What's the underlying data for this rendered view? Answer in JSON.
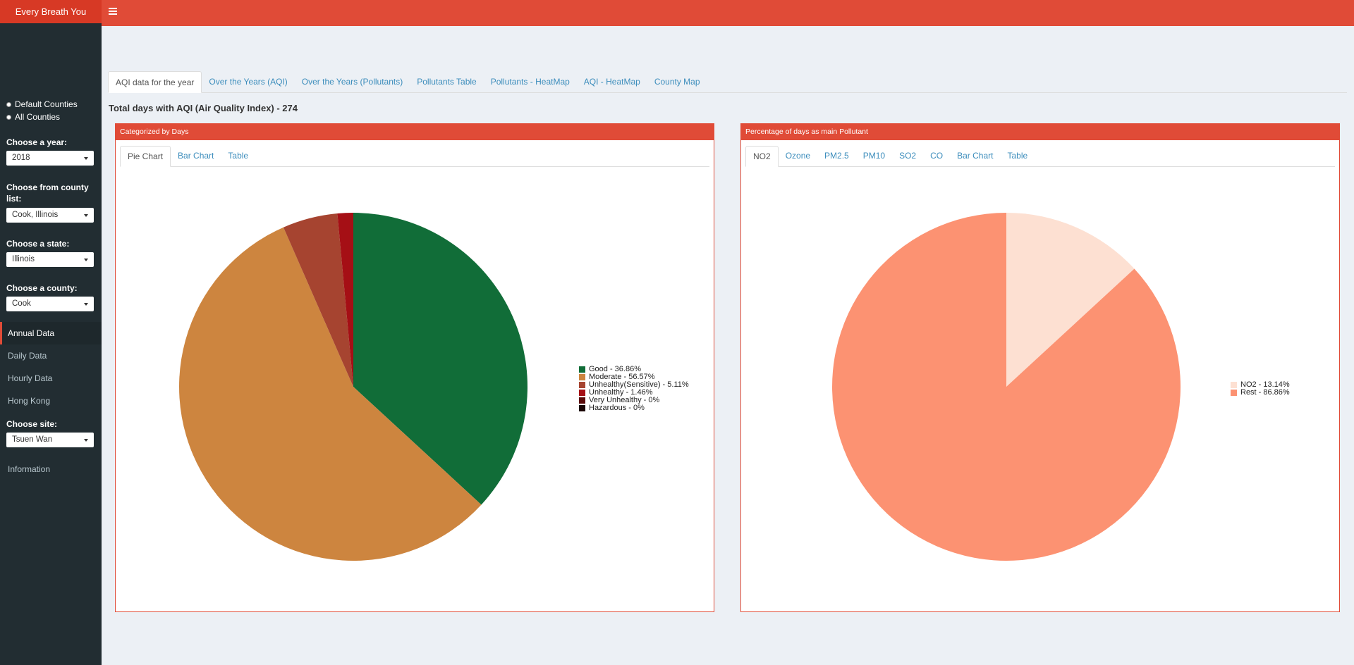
{
  "app": {
    "title": "Every Breath You"
  },
  "sidebar": {
    "radios": [
      {
        "label": "Default Counties"
      },
      {
        "label": "All Counties"
      }
    ],
    "year_label": "Choose a year:",
    "year_value": "2018",
    "county_list_label": "Choose from county list:",
    "county_list_value": "Cook, Illinois",
    "state_label": "Choose a state:",
    "state_value": "Illinois",
    "county_label": "Choose a county:",
    "county_value": "Cook",
    "menu": [
      {
        "label": "Annual Data",
        "active": true
      },
      {
        "label": "Daily Data"
      },
      {
        "label": "Hourly Data"
      },
      {
        "label": "Hong Kong"
      }
    ],
    "site_label": "Choose site:",
    "site_value": "Tsuen Wan",
    "info_label": "Information"
  },
  "main": {
    "tabs": [
      {
        "label": "AQI data for the year",
        "active": true
      },
      {
        "label": "Over the Years (AQI)"
      },
      {
        "label": "Over the Years (Pollutants)"
      },
      {
        "label": "Pollutants Table"
      },
      {
        "label": "Pollutants - HeatMap"
      },
      {
        "label": "AQI - HeatMap"
      },
      {
        "label": "County Map"
      }
    ],
    "total_days": "Total days with AQI (Air Quality Index) - 274"
  },
  "box_left": {
    "title": "Categorized by Days",
    "tabs": [
      {
        "label": "Pie Chart",
        "active": true
      },
      {
        "label": "Bar Chart"
      },
      {
        "label": "Table"
      }
    ]
  },
  "box_right": {
    "title": "Percentage of days as main Pollutant",
    "tabs": [
      {
        "label": "NO2",
        "active": true
      },
      {
        "label": "Ozone"
      },
      {
        "label": "PM2.5"
      },
      {
        "label": "PM10"
      },
      {
        "label": "SO2"
      },
      {
        "label": "CO"
      },
      {
        "label": "Bar Chart"
      },
      {
        "label": "Table"
      }
    ]
  },
  "chart_data": [
    {
      "type": "pie",
      "title": "",
      "legend_position": "right",
      "slices": [
        {
          "label": "Good - 36.86%",
          "value": 36.86,
          "color": "#116d38"
        },
        {
          "label": "Moderate - 56.57%",
          "value": 56.57,
          "color": "#cd853f"
        },
        {
          "label": "Unhealthy(Sensitive) - 5.11%",
          "value": 5.11,
          "color": "#a64430"
        },
        {
          "label": "Unhealthy - 1.46%",
          "value": 1.46,
          "color": "#a50f15"
        },
        {
          "label": "Very Unhealthy - 0%",
          "value": 0,
          "color": "#5a0a0a"
        },
        {
          "label": "Hazardous - 0%",
          "value": 0,
          "color": "#1a0505"
        }
      ]
    },
    {
      "type": "pie",
      "title": "",
      "legend_position": "right",
      "slices": [
        {
          "label": "NO2 - 13.14%",
          "value": 13.14,
          "color": "#fde0d2"
        },
        {
          "label": "Rest - 86.86%",
          "value": 86.86,
          "color": "#fc9272"
        }
      ]
    }
  ],
  "colors": {
    "accent": "#e04b37",
    "sidebar": "#222d32",
    "link": "#3c8dbc"
  }
}
